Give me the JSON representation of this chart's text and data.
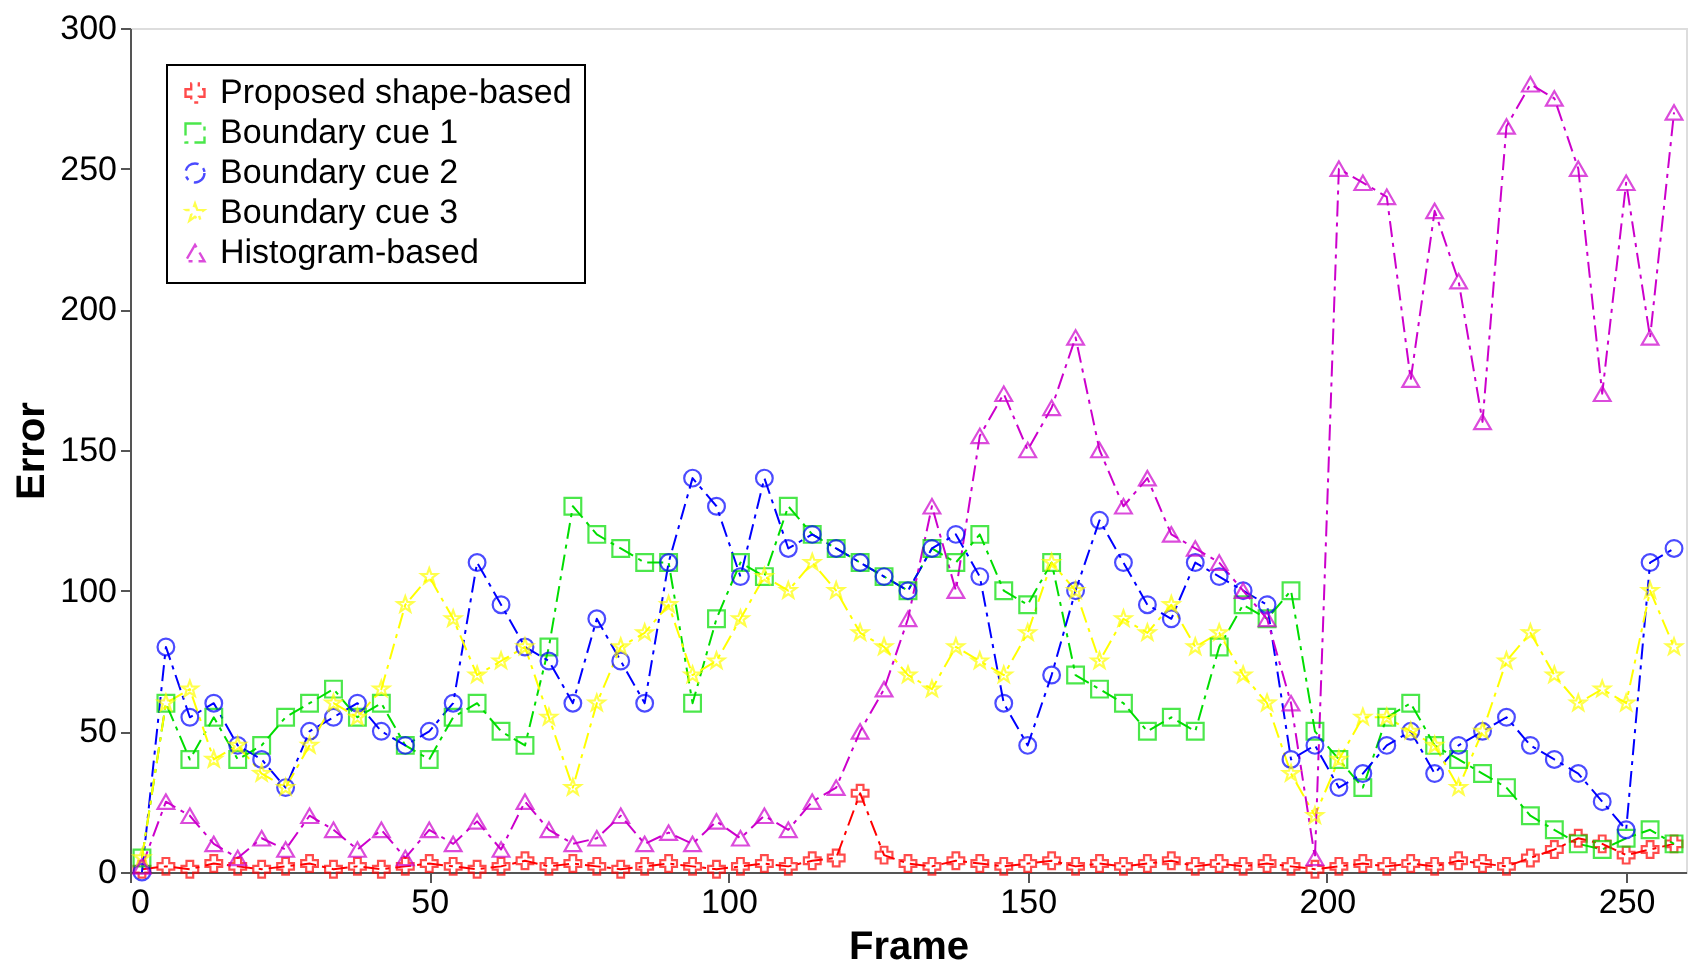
{
  "chart_data": {
    "type": "line",
    "xlabel": "Frame",
    "ylabel": "Error",
    "xlim": [
      0,
      260
    ],
    "ylim": [
      0,
      300
    ],
    "xticks": [
      0,
      50,
      100,
      150,
      200,
      250
    ],
    "yticks": [
      0,
      50,
      100,
      150,
      200,
      250,
      300
    ],
    "grid": false,
    "legend": "top left",
    "line_style": "dashed",
    "x": [
      2,
      6,
      10,
      14,
      18,
      22,
      26,
      30,
      34,
      38,
      42,
      46,
      50,
      54,
      58,
      62,
      66,
      70,
      74,
      78,
      82,
      86,
      90,
      94,
      98,
      102,
      106,
      110,
      114,
      118,
      122,
      126,
      130,
      134,
      138,
      142,
      146,
      150,
      154,
      158,
      162,
      166,
      170,
      174,
      178,
      182,
      186,
      190,
      194,
      198,
      202,
      206,
      210,
      214,
      218,
      222,
      226,
      230,
      234,
      238,
      242,
      246,
      250,
      254,
      258
    ],
    "series": [
      {
        "name": "Proposed shape-based",
        "color": "#ff0000",
        "marker": "cross",
        "values": [
          1,
          2,
          1,
          3,
          2,
          1,
          2,
          3,
          1,
          2,
          1,
          2,
          3,
          2,
          1,
          2,
          4,
          2,
          3,
          2,
          1,
          2,
          3,
          2,
          1,
          2,
          3,
          2,
          4,
          5,
          28,
          6,
          3,
          2,
          4,
          3,
          2,
          3,
          4,
          2,
          3,
          2,
          3,
          4,
          2,
          3,
          2,
          3,
          2,
          1,
          2,
          3,
          2,
          3,
          2,
          4,
          3,
          2,
          5,
          8,
          12,
          10,
          6,
          8,
          10
        ]
      },
      {
        "name": "Boundary cue 1",
        "color": "#00dd00",
        "marker": "square",
        "values": [
          5,
          60,
          40,
          55,
          40,
          45,
          55,
          60,
          65,
          55,
          60,
          45,
          40,
          55,
          60,
          50,
          45,
          80,
          130,
          120,
          115,
          110,
          110,
          60,
          90,
          110,
          105,
          130,
          120,
          115,
          110,
          105,
          100,
          115,
          110,
          120,
          100,
          95,
          110,
          70,
          65,
          60,
          50,
          55,
          50,
          80,
          95,
          90,
          100,
          50,
          40,
          30,
          55,
          60,
          45,
          40,
          35,
          30,
          20,
          15,
          10,
          8,
          12,
          15,
          10
        ]
      },
      {
        "name": "Boundary cue 2",
        "color": "#0000ff",
        "marker": "circle",
        "values": [
          0,
          80,
          55,
          60,
          45,
          40,
          30,
          50,
          55,
          60,
          50,
          45,
          50,
          60,
          110,
          95,
          80,
          75,
          60,
          90,
          75,
          60,
          110,
          140,
          130,
          105,
          140,
          115,
          120,
          115,
          110,
          105,
          100,
          115,
          120,
          105,
          60,
          45,
          70,
          100,
          125,
          110,
          95,
          90,
          110,
          105,
          100,
          95,
          40,
          45,
          30,
          35,
          45,
          50,
          35,
          45,
          50,
          55,
          45,
          40,
          35,
          25,
          15,
          110,
          115
        ]
      },
      {
        "name": "Boundary cue 3",
        "color": "#ffff00",
        "marker": "star",
        "values": [
          5,
          60,
          65,
          40,
          45,
          35,
          30,
          45,
          60,
          55,
          65,
          95,
          105,
          90,
          70,
          75,
          80,
          55,
          30,
          60,
          80,
          85,
          95,
          70,
          75,
          90,
          105,
          100,
          110,
          100,
          85,
          80,
          70,
          65,
          80,
          75,
          70,
          85,
          110,
          100,
          75,
          90,
          85,
          95,
          80,
          85,
          70,
          60,
          35,
          20,
          40,
          55,
          55,
          50,
          45,
          30,
          50,
          75,
          85,
          70,
          60,
          65,
          60,
          100,
          80
        ]
      },
      {
        "name": "Histogram-based",
        "color": "#cc00cc",
        "marker": "triangle",
        "values": [
          2,
          25,
          20,
          10,
          5,
          12,
          8,
          20,
          15,
          8,
          15,
          5,
          15,
          10,
          18,
          8,
          25,
          15,
          10,
          12,
          20,
          10,
          14,
          10,
          18,
          12,
          20,
          15,
          25,
          30,
          50,
          65,
          90,
          130,
          100,
          155,
          170,
          150,
          165,
          190,
          150,
          130,
          140,
          120,
          115,
          110,
          100,
          90,
          60,
          5,
          250,
          245,
          240,
          175,
          235,
          210,
          160,
          265,
          280,
          275,
          250,
          170,
          245,
          190,
          270
        ]
      }
    ]
  }
}
